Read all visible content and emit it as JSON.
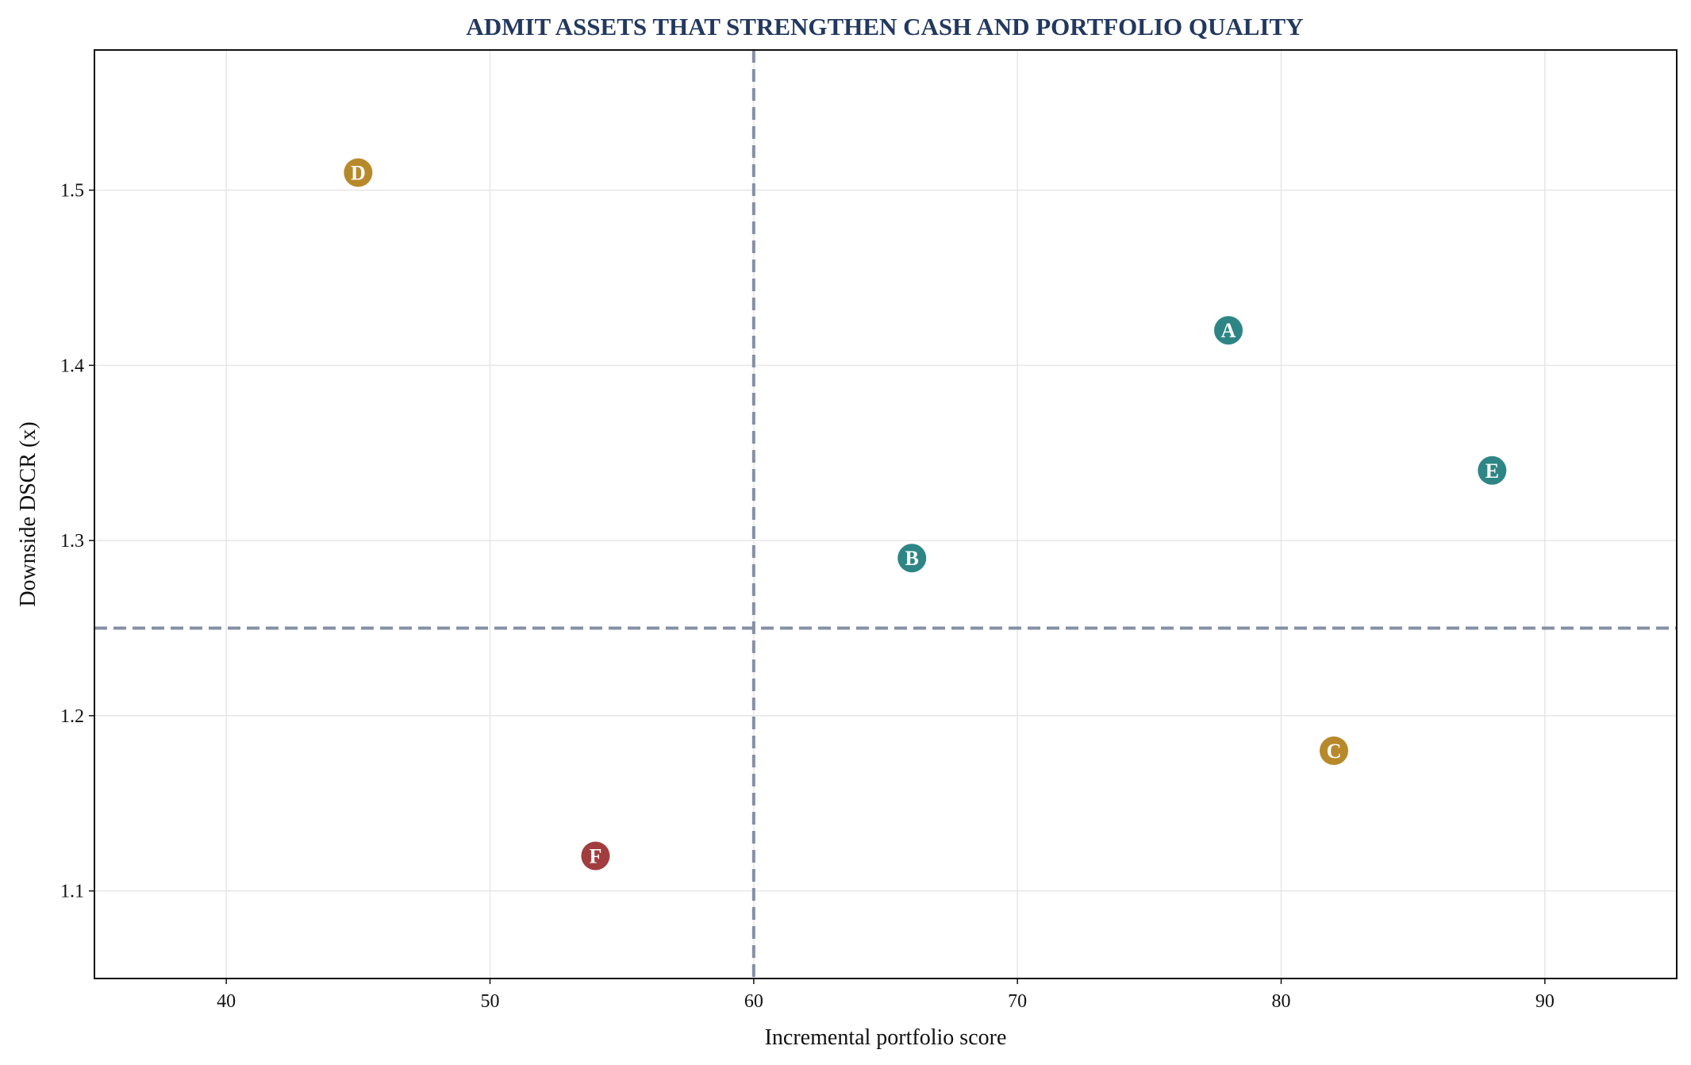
{
  "chart_data": {
    "type": "scatter",
    "title": "ADMIT ASSETS THAT STRENGTHEN CASH AND PORTFOLIO QUALITY",
    "xlabel": "Incremental portfolio score",
    "ylabel": "Downside DSCR (x)",
    "xlim": [
      35,
      95
    ],
    "ylim": [
      1.05,
      1.58
    ],
    "xticks": [
      40,
      50,
      60,
      70,
      80,
      90
    ],
    "yticks": [
      1.1,
      1.2,
      1.3,
      1.4,
      1.5
    ],
    "xtick_labels": [
      "40",
      "50",
      "60",
      "70",
      "80",
      "90"
    ],
    "ytick_labels": [
      "1.1",
      "1.2",
      "1.3",
      "1.4",
      "1.5"
    ],
    "grid": true,
    "reference_lines": {
      "x": 60,
      "y": 1.25
    },
    "points": [
      {
        "label": "A",
        "x": 78,
        "y": 1.42,
        "color": "#2e8586"
      },
      {
        "label": "B",
        "x": 66,
        "y": 1.29,
        "color": "#2e8586"
      },
      {
        "label": "C",
        "x": 82,
        "y": 1.18,
        "color": "#b8892a"
      },
      {
        "label": "D",
        "x": 45,
        "y": 1.51,
        "color": "#b8892a"
      },
      {
        "label": "E",
        "x": 88,
        "y": 1.34,
        "color": "#2e8586"
      },
      {
        "label": "F",
        "x": 54,
        "y": 1.12,
        "color": "#a13d3f"
      }
    ]
  }
}
